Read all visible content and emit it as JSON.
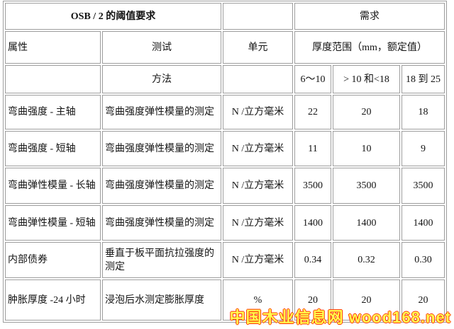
{
  "table": {
    "header": {
      "title": "OSB / 2 的阈值要求",
      "demand": "需求",
      "attribute": "属性",
      "test": "测试",
      "unit": "单元",
      "thickness_range": "厚度范围（mm，额定值）",
      "method": "方法",
      "range1": "6～10",
      "range2": "> 10 和<18",
      "range3": "18 到 25"
    },
    "rows": [
      {
        "name": "弯曲强度 - 主轴",
        "method": "弯曲强度弹性模量的测定",
        "unit": "N /立方毫米",
        "v1": "22",
        "v2": "20",
        "v3": "18"
      },
      {
        "name": "弯曲强度 - 短轴",
        "method": "弯曲强度弹性模量的测定",
        "unit": "N /立方毫米",
        "v1": "11",
        "v2": "10",
        "v3": "9"
      },
      {
        "name": "弯曲弹性模量 - 长轴",
        "method": "弯曲强度弹性模量的测定",
        "unit": "N /立方毫米",
        "v1": "3500",
        "v2": "3500",
        "v3": "3500"
      },
      {
        "name": "弯曲弹性模量 - 短轴",
        "method": "弯曲强度弹性模量的测定",
        "unit": "N /立方毫米",
        "v1": "1400",
        "v2": "1400",
        "v3": "1400"
      },
      {
        "name": "内部债券",
        "method": "垂直于板平面抗拉强度的测定",
        "unit": "N /立方毫米",
        "v1": "0.34",
        "v2": "0.32",
        "v3": "0.30"
      },
      {
        "name": "肿胀厚度 -24 小时",
        "method": "浸泡后水测定膨胀厚度",
        "unit": "%",
        "v1": "20",
        "v2": "20",
        "v3": "20"
      }
    ]
  },
  "watermark": {
    "text": "中国木业信息网 wood168.net",
    "fill_color": "#ffff4f",
    "outline_color": "#ff3000"
  }
}
